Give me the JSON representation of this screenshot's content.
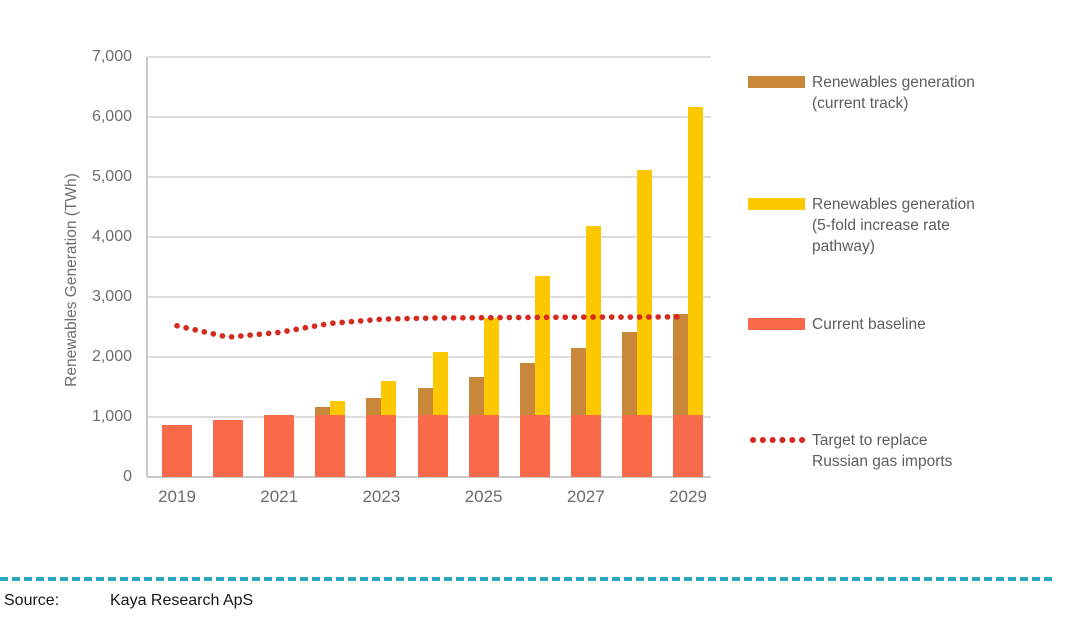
{
  "chart": {
    "y_axis": {
      "title": "Renewables Generation (TWh)",
      "tick_labels": [
        "0",
        "1,000",
        "2,000",
        "3,000",
        "4,000",
        "5,000",
        "6,000",
        "7,000"
      ],
      "tick_values": [
        0,
        1000,
        2000,
        3000,
        4000,
        5000,
        6000,
        7000
      ]
    },
    "x_axis": {
      "tick_labels": [
        "2019",
        "2021",
        "2023",
        "2025",
        "2027",
        "2029"
      ]
    }
  },
  "chart_data": {
    "type": "bar",
    "title": "",
    "xlabel": "",
    "ylabel": "Renewables Generation (TWh)",
    "ylim": [
      0,
      7000
    ],
    "grid": true,
    "legend_position": "right",
    "categories": [
      2019,
      2020,
      2021,
      2022,
      2023,
      2024,
      2025,
      2026,
      2027,
      2028,
      2029
    ],
    "series": [
      {
        "name": "Renewables generation (current track)",
        "type": "bar",
        "color": "#C9873A",
        "values": [
          null,
          null,
          null,
          1170,
          1320,
          1480,
          1670,
          1900,
          2150,
          2420,
          2710
        ]
      },
      {
        "name": "Renewables generation (5-fold increase rate pathway)",
        "type": "bar",
        "color": "#FDC800",
        "values": [
          null,
          null,
          null,
          1270,
          1600,
          2080,
          2650,
          3350,
          4180,
          5110,
          6170
        ]
      },
      {
        "name": "Current baseline",
        "type": "bar",
        "color": "#F96A4B",
        "values": [
          870,
          950,
          1040,
          1040,
          1040,
          1040,
          1040,
          1040,
          1040,
          1040,
          1040
        ]
      },
      {
        "name": "Target to replace Russian gas imports",
        "type": "dotted_line",
        "color": "#D42A1F",
        "values": [
          2520,
          2330,
          2410,
          2560,
          2630,
          2650,
          2655,
          2660,
          2665,
          2665,
          2670
        ]
      }
    ]
  },
  "legend": {
    "items": [
      {
        "swatch": "bar",
        "color": "#C9873A",
        "lines": [
          "Renewables generation",
          "(current track)"
        ]
      },
      {
        "swatch": "bar",
        "color": "#FDC800",
        "lines": [
          "Renewables generation",
          "(5-fold increase rate",
          "pathway)"
        ]
      },
      {
        "swatch": "bar",
        "color": "#F96A4B",
        "lines": [
          "Current baseline"
        ]
      },
      {
        "swatch": "dotted_line",
        "color": "#D42A1F",
        "lines": [
          "Target to replace",
          "Russian gas imports"
        ]
      }
    ]
  },
  "footer": {
    "source_label": "Source:",
    "source_value": "Kaya Research ApS",
    "rule_color": "#27A8C6"
  }
}
